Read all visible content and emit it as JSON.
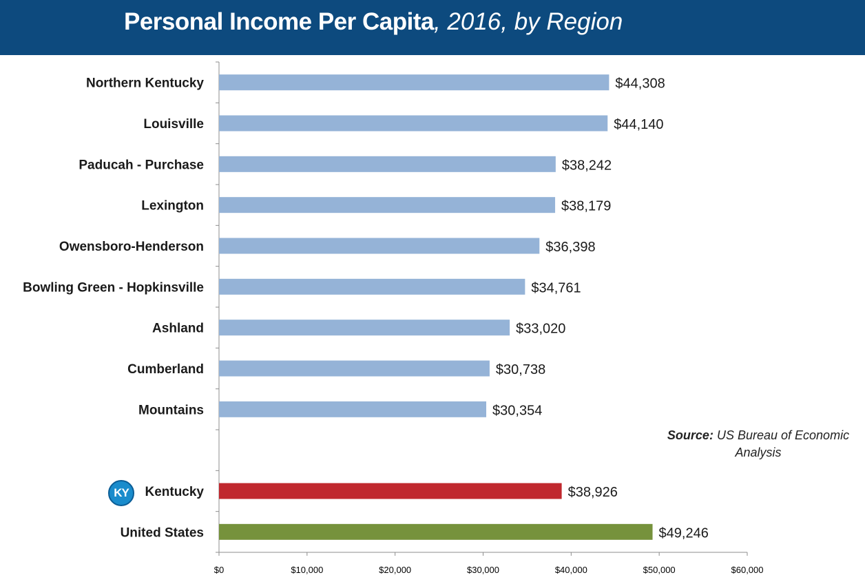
{
  "header": {
    "title_bold": "Personal Income Per Capita",
    "title_rest": ", 2016, by Region"
  },
  "source": {
    "label": "Source:",
    "text": "US Bureau of Economic Analysis"
  },
  "ky_badge": {
    "text": "KY",
    "icon": "kentucky-badge-icon"
  },
  "colors": {
    "regions": "#95b3d7",
    "kentucky": "#c0282e",
    "united_states": "#76923c",
    "header": "#0d4a7e"
  },
  "chart_data": {
    "type": "bar",
    "orientation": "horizontal",
    "categories": [
      "Northern Kentucky",
      "Louisville",
      "Paducah - Purchase",
      "Lexington",
      "Owensboro-Henderson",
      "Bowling Green - Hopkinsville",
      "Ashland",
      "Cumberland",
      "Mountains",
      "",
      "Kentucky",
      "United States"
    ],
    "values": [
      44308,
      44140,
      38242,
      38179,
      36398,
      34761,
      33020,
      30738,
      30354,
      null,
      38926,
      49246
    ],
    "data_labels": [
      "$44,308",
      "$44,140",
      "$38,242",
      "$38,179",
      "$36,398",
      "$34,761",
      "$33,020",
      "$30,738",
      "$30,354",
      "",
      "$38,926",
      "$49,246"
    ],
    "bar_colors": [
      "#95b3d7",
      "#95b3d7",
      "#95b3d7",
      "#95b3d7",
      "#95b3d7",
      "#95b3d7",
      "#95b3d7",
      "#95b3d7",
      "#95b3d7",
      "",
      "#c0282e",
      "#76923c"
    ],
    "xlim": [
      0,
      60000
    ],
    "x_ticks": [
      0,
      10000,
      20000,
      30000,
      40000,
      50000,
      60000
    ],
    "x_tick_labels": [
      "$0",
      "$10,000",
      "$20,000",
      "$30,000",
      "$40,000",
      "$50,000",
      "$60,000"
    ],
    "grid": false,
    "legend": "none"
  }
}
